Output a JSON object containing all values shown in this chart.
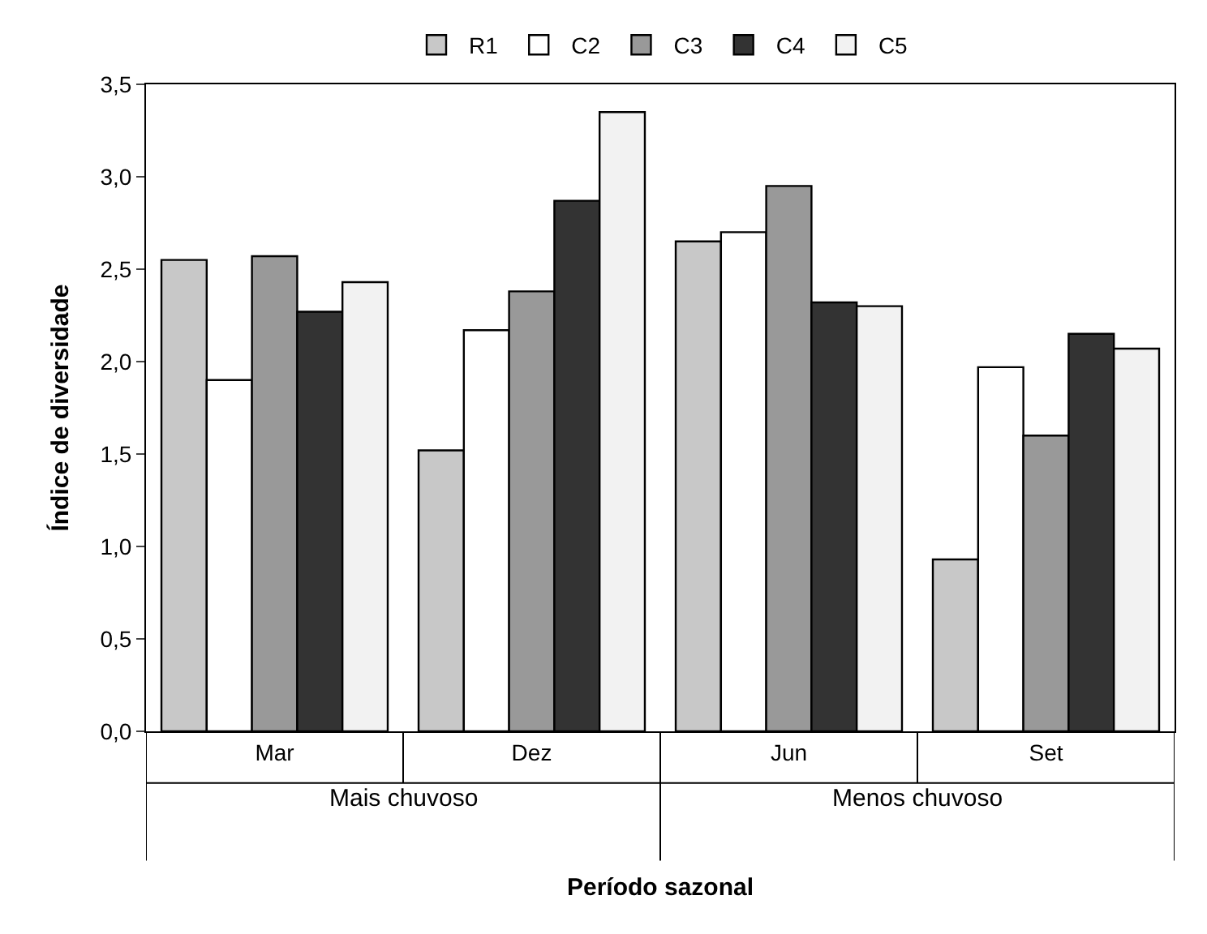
{
  "chart_data": {
    "type": "bar",
    "xlabel": "Período sazonal",
    "ylabel": "Índice de diversidade",
    "categories": [
      "Mar",
      "Dez",
      "Jun",
      "Set"
    ],
    "series": [
      {
        "name": "R1",
        "color": "#c8c8c8",
        "values": [
          2.55,
          1.52,
          2.65,
          0.93
        ]
      },
      {
        "name": "C2",
        "color": "#ffffff",
        "values": [
          1.9,
          2.17,
          2.7,
          1.97
        ]
      },
      {
        "name": "C3",
        "color": "#999999",
        "values": [
          2.57,
          2.38,
          2.95,
          1.6
        ]
      },
      {
        "name": "C4",
        "color": "#333333",
        "values": [
          2.27,
          2.87,
          2.32,
          2.15
        ]
      },
      {
        "name": "C5",
        "color": "#f2f2f2",
        "values": [
          2.43,
          3.35,
          2.3,
          2.07
        ]
      }
    ],
    "annotations": [
      "Mais chuvoso",
      "Menos chuvoso"
    ],
    "ylim": [
      0,
      3.5
    ],
    "yticks": [
      {
        "value": 0,
        "label": "0,0"
      },
      {
        "value": 0.5,
        "label": "0,5"
      },
      {
        "value": 1,
        "label": "1,0"
      },
      {
        "value": 1.5,
        "label": "1,5"
      },
      {
        "value": 2,
        "label": "2,0"
      },
      {
        "value": 2.5,
        "label": "2,5"
      },
      {
        "value": 3,
        "label": "3,0"
      },
      {
        "value": 3.5,
        "label": "3,5"
      }
    ],
    "grid": false,
    "legend": "top"
  }
}
